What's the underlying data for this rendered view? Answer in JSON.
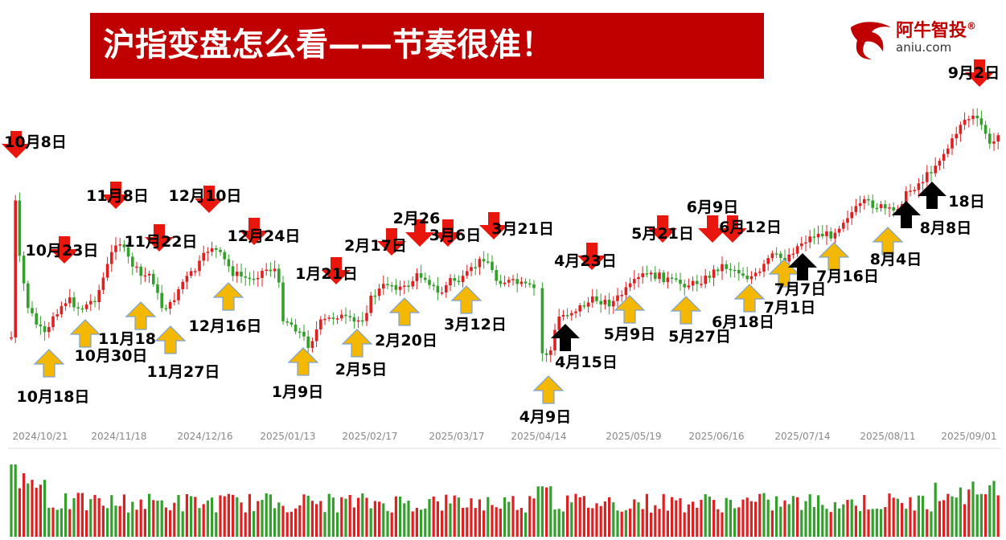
{
  "title": "沪指变盘怎么看——节奏很准！",
  "logo": {
    "name": "阿牛智投",
    "reg": "®",
    "url_text": "aniu.com"
  },
  "colors": {
    "up": "#e02020",
    "down": "#33a02c",
    "sell_arrow": "#e8160c",
    "buy_arrow": "#f5b800",
    "black_arrow": "#000000",
    "banner": "#c00000"
  },
  "chart_data": {
    "type": "candlestick",
    "x_ticks": [
      "2024/10/21",
      "2024/11/18",
      "2024/12/16",
      "2025/01/13",
      "2025/02/17",
      "2025/03/17",
      "2025/04/14",
      "2025/05/19",
      "2025/06/16",
      "2025/07/14",
      "2025/08/11",
      "2025/09/01"
    ],
    "annotations": [
      {
        "label": "10月8日",
        "type": "sell"
      },
      {
        "label": "10月18日",
        "type": "buy"
      },
      {
        "label": "10月23日",
        "type": "sell"
      },
      {
        "label": "10月30日",
        "type": "buy"
      },
      {
        "label": "11月8日",
        "type": "sell"
      },
      {
        "label": "11月18",
        "type": "buy"
      },
      {
        "label": "11月22日",
        "type": "sell"
      },
      {
        "label": "11月27日",
        "type": "buy"
      },
      {
        "label": "12月10日",
        "type": "sell"
      },
      {
        "label": "12月16日",
        "type": "buy"
      },
      {
        "label": "12月24日",
        "type": "sell"
      },
      {
        "label": "1月9日",
        "type": "buy"
      },
      {
        "label": "1月21日",
        "type": "sell"
      },
      {
        "label": "2月5日",
        "type": "buy"
      },
      {
        "label": "2月17日",
        "type": "sell"
      },
      {
        "label": "2月20日",
        "type": "buy"
      },
      {
        "label": "2月26",
        "type": "sell"
      },
      {
        "label": "3月6日",
        "type": "sell"
      },
      {
        "label": "3月12日",
        "type": "buy"
      },
      {
        "label": "3月21日",
        "type": "sell"
      },
      {
        "label": "4月9日",
        "type": "buy"
      },
      {
        "label": "4月15日",
        "type": "black"
      },
      {
        "label": "4月23日",
        "type": "sell"
      },
      {
        "label": "5月9日",
        "type": "buy"
      },
      {
        "label": "5月21日",
        "type": "sell"
      },
      {
        "label": "5月27日",
        "type": "buy"
      },
      {
        "label": "6月9日",
        "type": "sell"
      },
      {
        "label": "6月12日",
        "type": "sell"
      },
      {
        "label": "6月18日",
        "type": "buy"
      },
      {
        "label": "7月1日",
        "type": "buy"
      },
      {
        "label": "7月7日",
        "type": "black"
      },
      {
        "label": "7月16日",
        "type": "buy"
      },
      {
        "label": "8月4日",
        "type": "buy"
      },
      {
        "label": "8月8日",
        "type": "black"
      },
      {
        "label": "18日",
        "type": "black"
      },
      {
        "label": "9月2日",
        "type": "sell"
      }
    ]
  }
}
